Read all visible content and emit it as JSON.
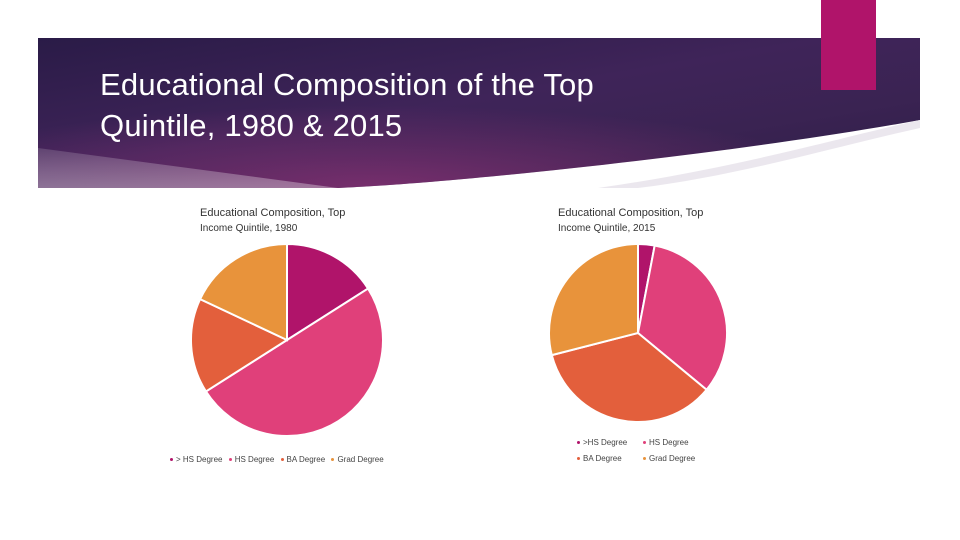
{
  "slide": {
    "title_line1": "Educational Composition of the Top",
    "title_line2": "Quintile, 1980 & 2015"
  },
  "colors": {
    "header_dark": "#2a1b47",
    "header_mid": "#3f2459",
    "header_glow": "#7a2f6e",
    "accent": "#b0146a"
  },
  "chart_data": [
    {
      "type": "pie",
      "title_line1": "Educational Composition, Top",
      "title_line2": "Income Quintile, 1980",
      "categories": [
        "> HS Degree",
        "HS Degree",
        "BA Degree",
        "Grad Degree"
      ],
      "values": [
        16,
        50,
        16,
        18
      ],
      "colors": [
        "#b0146a",
        "#e0407a",
        "#e35f3c",
        "#e8933b"
      ],
      "legend": {
        "position": "bottom",
        "labels": [
          "> HS Degree",
          "HS Degree",
          "BA Degree",
          "Grad Degree"
        ]
      }
    },
    {
      "type": "pie",
      "title_line1": "Educational Composition, Top",
      "title_line2": "Income Quintile, 2015",
      "categories": [
        ">HS Degree",
        "HS Degree",
        "BA Degree",
        "Grad Degree"
      ],
      "values": [
        3,
        33,
        35,
        29
      ],
      "colors": [
        "#b0146a",
        "#e0407a",
        "#e35f3c",
        "#e8933b"
      ],
      "legend": {
        "position": "bottom",
        "labels": [
          ">HS Degree",
          "HS Degree",
          "BA Degree",
          "Grad Degree"
        ]
      }
    }
  ]
}
